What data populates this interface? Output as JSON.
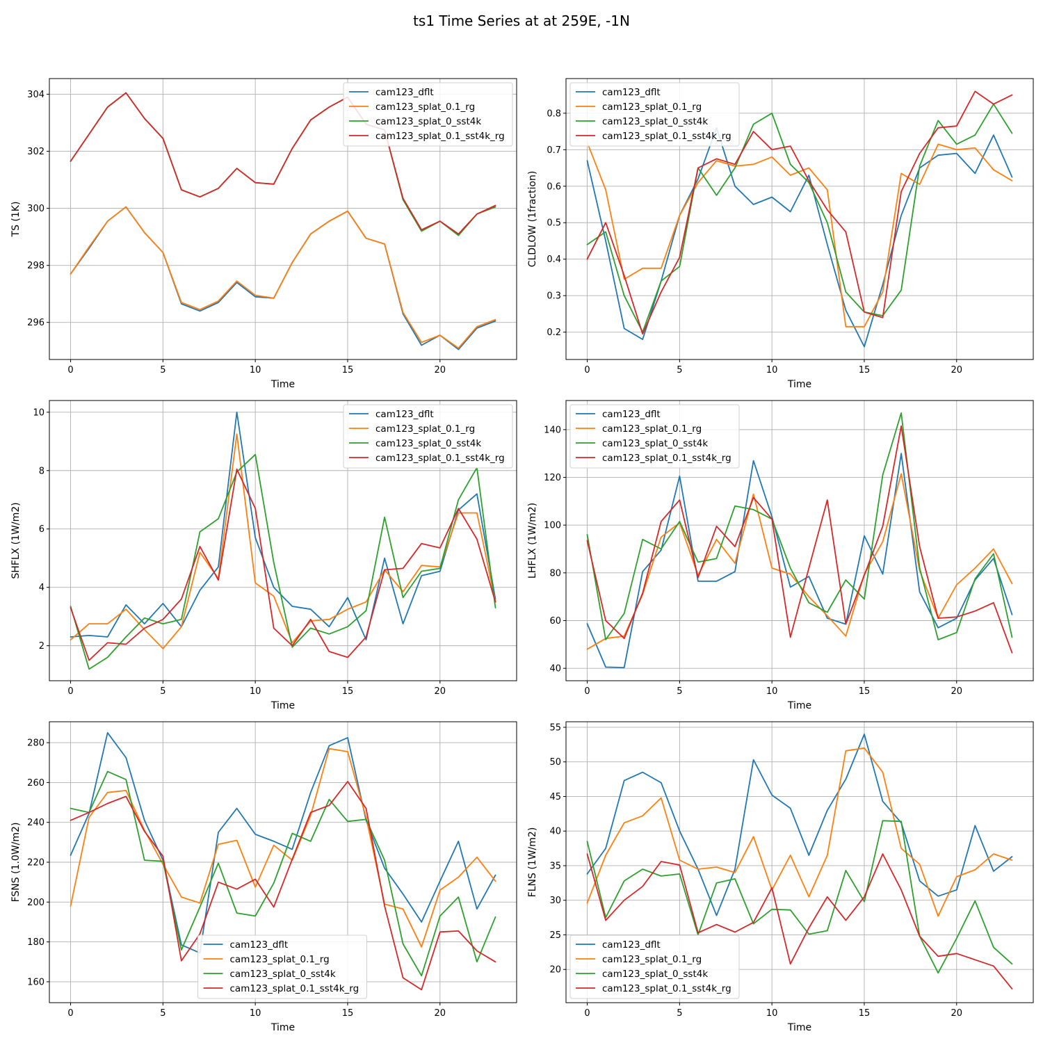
{
  "figure": {
    "title": "ts1 Time Series at at 259E, -1N"
  },
  "series_colors": {
    "cam123_dflt": "#1f77b4",
    "cam123_splat_0.1_rg": "#ff7f0e",
    "cam123_splat_0_sst4k": "#2ca02c",
    "cam123_splat_0.1_sst4k_rg": "#d62728"
  },
  "chart_data": [
    {
      "type": "line",
      "title": "",
      "xlabel": "Time",
      "ylabel": "TS (1K)",
      "xlim": [
        -1.15,
        24.15
      ],
      "ylim": [
        294.7,
        304.55
      ],
      "xticks": [
        0,
        5,
        10,
        15,
        20
      ],
      "yticks": [
        296,
        298,
        300,
        302,
        304
      ],
      "grid": true,
      "legend_position": "upper right",
      "x": [
        0,
        1,
        2,
        3,
        4,
        5,
        6,
        7,
        8,
        9,
        10,
        11,
        12,
        13,
        14,
        15,
        16,
        17,
        18,
        19,
        20,
        21,
        22,
        23
      ],
      "series": [
        {
          "name": "cam123_dflt",
          "values": [
            297.7,
            298.6,
            299.55,
            300.05,
            299.15,
            298.45,
            296.65,
            296.4,
            296.7,
            297.4,
            296.9,
            296.85,
            298.1,
            299.1,
            299.55,
            299.9,
            298.95,
            298.75,
            296.3,
            295.2,
            295.55,
            295.05,
            295.8,
            296.05
          ]
        },
        {
          "name": "cam123_splat_0.1_rg",
          "values": [
            297.7,
            298.65,
            299.55,
            300.05,
            299.15,
            298.45,
            296.7,
            296.45,
            296.75,
            297.45,
            296.95,
            296.85,
            298.1,
            299.1,
            299.55,
            299.9,
            298.95,
            298.75,
            296.35,
            295.3,
            295.55,
            295.1,
            295.85,
            296.1
          ]
        },
        {
          "name": "cam123_splat_0_sst4k",
          "values": [
            301.65,
            302.6,
            303.55,
            304.05,
            303.15,
            302.45,
            300.65,
            300.4,
            300.7,
            301.4,
            300.9,
            300.85,
            302.1,
            303.1,
            303.55,
            303.9,
            302.95,
            302.75,
            300.3,
            299.2,
            299.55,
            299.05,
            299.8,
            300.05
          ]
        },
        {
          "name": "cam123_splat_0.1_sst4k_rg",
          "values": [
            301.65,
            302.6,
            303.55,
            304.05,
            303.15,
            302.45,
            300.65,
            300.4,
            300.7,
            301.4,
            300.9,
            300.85,
            302.1,
            303.1,
            303.55,
            303.9,
            302.95,
            302.75,
            300.35,
            299.25,
            299.55,
            299.1,
            299.8,
            300.1
          ]
        }
      ]
    },
    {
      "type": "line",
      "title": "",
      "xlabel": "Time",
      "ylabel": "CLDLOW (1fraction)",
      "xlim": [
        -1.15,
        24.15
      ],
      "ylim": [
        0.125,
        0.895
      ],
      "xticks": [
        0,
        5,
        10,
        15,
        20
      ],
      "yticks": [
        0.2,
        0.3,
        0.4,
        0.5,
        0.6,
        0.7,
        0.8
      ],
      "grid": true,
      "legend_position": "upper left",
      "x": [
        0,
        1,
        2,
        3,
        4,
        5,
        6,
        7,
        8,
        9,
        10,
        11,
        12,
        13,
        14,
        15,
        16,
        17,
        18,
        19,
        20,
        21,
        22,
        23
      ],
      "series": [
        {
          "name": "cam123_dflt",
          "values": [
            0.67,
            0.45,
            0.21,
            0.18,
            0.34,
            0.52,
            0.62,
            0.76,
            0.6,
            0.55,
            0.57,
            0.53,
            0.63,
            0.44,
            0.26,
            0.16,
            0.33,
            0.52,
            0.65,
            0.685,
            0.69,
            0.635,
            0.74,
            0.625
          ]
        },
        {
          "name": "cam123_splat_0.1_rg",
          "values": [
            0.72,
            0.59,
            0.345,
            0.375,
            0.375,
            0.52,
            0.61,
            0.67,
            0.655,
            0.66,
            0.68,
            0.63,
            0.65,
            0.59,
            0.215,
            0.215,
            0.31,
            0.635,
            0.605,
            0.715,
            0.7,
            0.705,
            0.645,
            0.615
          ]
        },
        {
          "name": "cam123_splat_0_sst4k",
          "values": [
            0.44,
            0.475,
            0.3,
            0.2,
            0.34,
            0.38,
            0.65,
            0.575,
            0.65,
            0.77,
            0.8,
            0.66,
            0.61,
            0.5,
            0.31,
            0.255,
            0.245,
            0.315,
            0.655,
            0.78,
            0.715,
            0.74,
            0.825,
            0.745
          ]
        },
        {
          "name": "cam123_splat_0.1_sst4k_rg",
          "values": [
            0.4,
            0.5,
            0.355,
            0.195,
            0.31,
            0.405,
            0.65,
            0.675,
            0.66,
            0.75,
            0.7,
            0.71,
            0.615,
            0.535,
            0.475,
            0.255,
            0.24,
            0.585,
            0.69,
            0.76,
            0.765,
            0.86,
            0.825,
            0.85
          ]
        }
      ]
    },
    {
      "type": "line",
      "title": "",
      "xlabel": "Time",
      "ylabel": "SHFLX (1W/m2)",
      "xlim": [
        -1.15,
        24.15
      ],
      "ylim": [
        0.8,
        10.4
      ],
      "xticks": [
        0,
        5,
        10,
        15,
        20
      ],
      "yticks": [
        2,
        4,
        6,
        8,
        10
      ],
      "grid": true,
      "legend_position": "upper right",
      "x": [
        0,
        1,
        2,
        3,
        4,
        5,
        6,
        7,
        8,
        9,
        10,
        11,
        12,
        13,
        14,
        15,
        16,
        17,
        18,
        19,
        20,
        21,
        22,
        23
      ],
      "series": [
        {
          "name": "cam123_dflt",
          "values": [
            2.3,
            2.35,
            2.3,
            3.4,
            2.75,
            3.45,
            2.65,
            3.9,
            4.7,
            10.0,
            5.7,
            4.0,
            3.35,
            3.25,
            2.65,
            3.65,
            2.2,
            5.0,
            2.75,
            4.4,
            4.55,
            6.65,
            7.2,
            3.6
          ]
        },
        {
          "name": "cam123_splat_0.1_rg",
          "values": [
            2.2,
            2.75,
            2.75,
            3.25,
            2.55,
            1.9,
            2.65,
            5.2,
            4.3,
            9.25,
            4.15,
            3.7,
            2.1,
            2.85,
            2.9,
            3.25,
            3.5,
            4.6,
            3.85,
            4.75,
            4.7,
            6.55,
            6.55,
            3.5
          ]
        },
        {
          "name": "cam123_splat_0_sst4k",
          "values": [
            3.35,
            1.2,
            1.6,
            2.3,
            2.95,
            2.75,
            2.9,
            5.9,
            6.35,
            7.95,
            8.55,
            4.85,
            1.95,
            2.6,
            2.4,
            2.65,
            3.2,
            6.4,
            3.65,
            4.55,
            4.65,
            7.0,
            8.1,
            3.3
          ]
        },
        {
          "name": "cam123_splat_0.1_sst4k_rg",
          "values": [
            3.3,
            1.5,
            2.1,
            2.05,
            2.6,
            2.9,
            3.6,
            5.4,
            4.25,
            8.05,
            6.7,
            2.6,
            2.0,
            2.9,
            1.8,
            1.6,
            2.3,
            4.6,
            4.65,
            5.5,
            5.35,
            6.7,
            5.65,
            3.5
          ]
        }
      ]
    },
    {
      "type": "line",
      "title": "",
      "xlabel": "Time",
      "ylabel": "LHFLX (1W/m2)",
      "xlim": [
        -1.15,
        24.15
      ],
      "ylim": [
        34.8,
        152.2
      ],
      "xticks": [
        0,
        5,
        10,
        15,
        20
      ],
      "yticks": [
        40,
        60,
        80,
        100,
        120,
        140
      ],
      "grid": true,
      "legend_position": "upper left",
      "x": [
        0,
        1,
        2,
        3,
        4,
        5,
        6,
        7,
        8,
        9,
        10,
        11,
        12,
        13,
        14,
        15,
        16,
        17,
        18,
        19,
        20,
        21,
        22,
        23
      ],
      "series": [
        {
          "name": "cam123_dflt",
          "values": [
            58.7,
            40.5,
            40.3,
            80.5,
            89.5,
            120.5,
            76.5,
            76.5,
            80.5,
            127.0,
            103.5,
            74.0,
            78.5,
            61.0,
            58.5,
            95.5,
            79.5,
            130.0,
            72.0,
            57.0,
            61.0,
            77.0,
            86.0,
            62.5
          ]
        },
        {
          "name": "cam123_splat_0.1_rg",
          "values": [
            48.0,
            52.5,
            53.5,
            71.0,
            95.0,
            101.0,
            79.0,
            94.0,
            84.0,
            113.0,
            82.0,
            79.5,
            70.0,
            62.0,
            53.5,
            79.5,
            93.0,
            121.5,
            81.0,
            61.0,
            75.0,
            82.0,
            90.0,
            75.5
          ]
        },
        {
          "name": "cam123_splat_0_sst4k",
          "values": [
            96.0,
            52.0,
            63.0,
            94.0,
            90.0,
            101.5,
            84.5,
            86.0,
            108.0,
            106.5,
            102.5,
            82.0,
            67.5,
            63.5,
            77.0,
            69.0,
            121.0,
            147.0,
            82.0,
            52.0,
            55.0,
            77.5,
            88.0,
            53.0
          ]
        },
        {
          "name": "cam123_splat_0.1_sst4k_rg",
          "values": [
            93.5,
            60.0,
            52.5,
            71.5,
            101.5,
            110.5,
            78.0,
            99.5,
            91.0,
            111.5,
            102.5,
            53.0,
            82.0,
            110.5,
            58.5,
            79.0,
            99.5,
            141.5,
            91.0,
            61.0,
            61.5,
            64.0,
            67.5,
            46.5
          ]
        }
      ]
    },
    {
      "type": "line",
      "title": "",
      "xlabel": "Time",
      "ylabel": "FSNS (1.0W/m2)",
      "xlim": [
        -1.15,
        24.15
      ],
      "ylim": [
        149.5,
        290.5
      ],
      "xticks": [
        0,
        5,
        10,
        15,
        20
      ],
      "yticks": [
        160,
        180,
        200,
        220,
        240,
        260,
        280
      ],
      "grid": true,
      "legend_position": "lower center",
      "x": [
        0,
        1,
        2,
        3,
        4,
        5,
        6,
        7,
        8,
        9,
        10,
        11,
        12,
        13,
        14,
        15,
        16,
        17,
        18,
        19,
        20,
        21,
        22,
        23
      ],
      "series": [
        {
          "name": "cam123_dflt",
          "values": [
            223.5,
            244.5,
            285.0,
            272.5,
            241.0,
            221.0,
            178.5,
            174.5,
            235.0,
            247.0,
            234.0,
            230.5,
            226.5,
            255.0,
            278.5,
            282.5,
            241.0,
            217.0,
            204.0,
            190.0,
            210.5,
            230.5,
            196.5,
            213.5
          ]
        },
        {
          "name": "cam123_splat_0.1_rg",
          "values": [
            198.0,
            242.5,
            255.0,
            256.0,
            236.0,
            219.0,
            202.5,
            199.5,
            229.0,
            231.0,
            207.5,
            228.5,
            221.0,
            243.5,
            277.0,
            275.5,
            242.5,
            199.0,
            196.5,
            177.5,
            206.0,
            212.5,
            222.5,
            210.5
          ]
        },
        {
          "name": "cam123_splat_0_sst4k",
          "values": [
            247.0,
            245.0,
            265.5,
            261.5,
            221.0,
            220.5,
            176.0,
            197.5,
            219.5,
            194.5,
            193.0,
            209.5,
            234.5,
            230.5,
            251.5,
            240.5,
            241.5,
            221.0,
            179.0,
            163.0,
            193.0,
            202.5,
            170.0,
            192.5
          ]
        },
        {
          "name": "cam123_splat_0.1_sst4k_rg",
          "values": [
            241.0,
            245.0,
            249.5,
            253.0,
            235.5,
            223.0,
            170.5,
            184.0,
            210.0,
            206.5,
            211.5,
            197.5,
            221.5,
            245.0,
            248.5,
            260.5,
            247.0,
            198.0,
            162.0,
            156.0,
            185.0,
            185.5,
            175.5,
            170.0
          ]
        }
      ]
    },
    {
      "type": "line",
      "title": "",
      "xlabel": "Time",
      "ylabel": "FLNS (1W/m2)",
      "xlim": [
        -1.15,
        24.15
      ],
      "ylim": [
        15.2,
        55.8
      ],
      "xticks": [
        0,
        5,
        10,
        15,
        20
      ],
      "yticks": [
        20,
        25,
        30,
        35,
        40,
        45,
        50,
        55
      ],
      "grid": true,
      "legend_position": "lower left",
      "x": [
        0,
        1,
        2,
        3,
        4,
        5,
        6,
        7,
        8,
        9,
        10,
        11,
        12,
        13,
        14,
        15,
        16,
        17,
        18,
        19,
        20,
        21,
        22,
        23
      ],
      "series": [
        {
          "name": "cam123_dflt",
          "values": [
            33.8,
            37.5,
            47.3,
            48.5,
            47.0,
            40.0,
            34.5,
            27.8,
            34.5,
            50.3,
            45.2,
            43.3,
            36.5,
            43.0,
            47.5,
            54.0,
            44.3,
            41.2,
            32.8,
            30.6,
            31.5,
            40.8,
            34.2,
            36.3
          ]
        },
        {
          "name": "cam123_splat_0.1_rg",
          "values": [
            29.6,
            36.5,
            41.2,
            42.2,
            44.8,
            35.8,
            34.5,
            34.8,
            34.0,
            39.2,
            31.5,
            36.5,
            30.5,
            36.5,
            51.6,
            52.0,
            48.5,
            37.5,
            35.2,
            27.7,
            33.4,
            34.4,
            36.7,
            35.8
          ]
        },
        {
          "name": "cam123_splat_0_sst4k",
          "values": [
            38.5,
            27.5,
            32.8,
            34.5,
            33.5,
            33.8,
            25.0,
            32.5,
            33.1,
            26.6,
            28.7,
            28.6,
            25.1,
            25.6,
            34.3,
            29.8,
            41.5,
            41.4,
            24.8,
            19.5,
            24.5,
            29.9,
            23.2,
            20.8
          ]
        },
        {
          "name": "cam123_splat_0.1_sst4k_rg",
          "values": [
            36.7,
            27.1,
            30.0,
            32.0,
            35.6,
            35.1,
            25.3,
            26.5,
            25.4,
            26.8,
            31.8,
            20.8,
            26.0,
            30.5,
            27.1,
            30.5,
            36.7,
            31.5,
            24.8,
            21.9,
            22.3,
            21.4,
            20.5,
            17.2
          ]
        }
      ]
    }
  ]
}
